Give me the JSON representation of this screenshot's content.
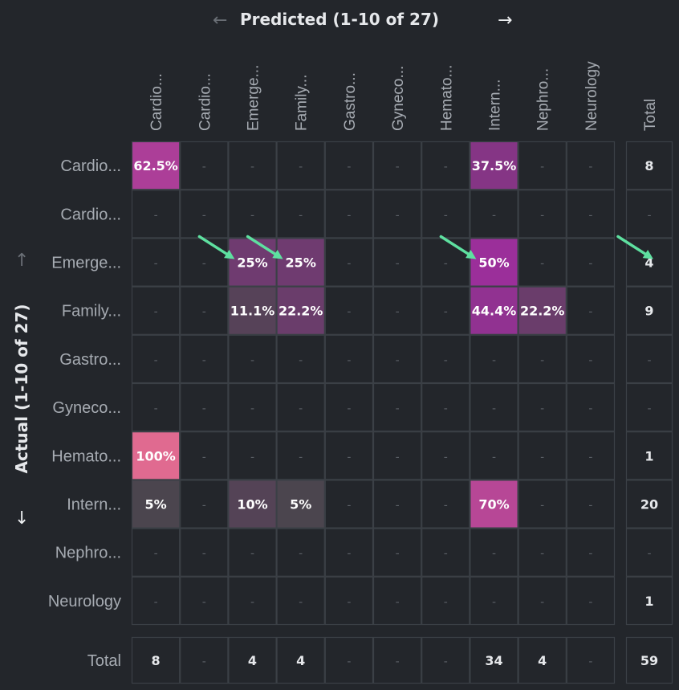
{
  "header": {
    "title": "Predicted (1-10 of 27)",
    "prev_icon": "arrow-left-icon",
    "next_icon": "arrow-right-icon"
  },
  "side": {
    "label": "Actual (1-10 of 27)",
    "up_icon": "arrow-up-icon",
    "down_icon": "arrow-down-icon"
  },
  "colors": {
    "background": "#23262b",
    "grid_line": "#3b4046",
    "low": "#4b454e",
    "mid": "#9b2f9a",
    "high": "#e06a90",
    "annotation_arrow": "#5ee0a0"
  },
  "chart_data": {
    "type": "heatmap",
    "x_categories": [
      "Cardio...",
      "Cardio...",
      "Emerge...",
      "Family...",
      "Gastro...",
      "Gyneco...",
      "Hemato...",
      "Intern...",
      "Nephro...",
      "Neurology"
    ],
    "y_categories": [
      "Cardio...",
      "Cardio...",
      "Emerge...",
      "Family...",
      "Gastro...",
      "Gyneco...",
      "Hemato...",
      "Intern...",
      "Nephro...",
      "Neurology"
    ],
    "empty_label": "-",
    "values": [
      [
        62.5,
        null,
        null,
        null,
        null,
        null,
        null,
        37.5,
        null,
        null
      ],
      [
        null,
        null,
        null,
        null,
        null,
        null,
        null,
        null,
        null,
        null
      ],
      [
        null,
        null,
        25,
        25,
        null,
        null,
        null,
        50,
        null,
        null
      ],
      [
        null,
        null,
        11.1,
        22.2,
        null,
        null,
        null,
        44.4,
        22.2,
        null
      ],
      [
        null,
        null,
        null,
        null,
        null,
        null,
        null,
        null,
        null,
        null
      ],
      [
        null,
        null,
        null,
        null,
        null,
        null,
        null,
        null,
        null,
        null
      ],
      [
        100,
        null,
        null,
        null,
        null,
        null,
        null,
        null,
        null,
        null
      ],
      [
        5,
        null,
        10,
        5,
        null,
        null,
        null,
        70,
        null,
        null
      ],
      [
        null,
        null,
        null,
        null,
        null,
        null,
        null,
        null,
        null,
        null
      ],
      [
        null,
        null,
        null,
        null,
        null,
        null,
        null,
        null,
        null,
        null
      ]
    ],
    "cell_labels": [
      [
        "62.5%",
        "-",
        "-",
        "-",
        "-",
        "-",
        "-",
        "37.5%",
        "-",
        "-"
      ],
      [
        "-",
        "-",
        "-",
        "-",
        "-",
        "-",
        "-",
        "-",
        "-",
        "-"
      ],
      [
        "-",
        "-",
        "25%",
        "25%",
        "-",
        "-",
        "-",
        "50%",
        "-",
        "-"
      ],
      [
        "-",
        "-",
        "11.1%",
        "22.2%",
        "-",
        "-",
        "-",
        "44.4%",
        "22.2%",
        "-"
      ],
      [
        "-",
        "-",
        "-",
        "-",
        "-",
        "-",
        "-",
        "-",
        "-",
        "-"
      ],
      [
        "-",
        "-",
        "-",
        "-",
        "-",
        "-",
        "-",
        "-",
        "-",
        "-"
      ],
      [
        "100%",
        "-",
        "-",
        "-",
        "-",
        "-",
        "-",
        "-",
        "-",
        "-"
      ],
      [
        "5%",
        "-",
        "10%",
        "5%",
        "-",
        "-",
        "-",
        "70%",
        "-",
        "-"
      ],
      [
        "-",
        "-",
        "-",
        "-",
        "-",
        "-",
        "-",
        "-",
        "-",
        "-"
      ],
      [
        "-",
        "-",
        "-",
        "-",
        "-",
        "-",
        "-",
        "-",
        "-",
        "-"
      ]
    ],
    "row_totals": [
      "8",
      "-",
      "4",
      "9",
      "-",
      "-",
      "1",
      "20",
      "-",
      "1"
    ],
    "col_totals": [
      "8",
      "-",
      "4",
      "4",
      "-",
      "-",
      "-",
      "34",
      "4",
      "-"
    ],
    "total_label": "Total",
    "grand_total": "59",
    "annotations": [
      {
        "row": 2,
        "col": 2
      },
      {
        "row": 2,
        "col": 3
      },
      {
        "row": 2,
        "col": 7
      },
      {
        "row": 2,
        "col": "total"
      }
    ]
  }
}
